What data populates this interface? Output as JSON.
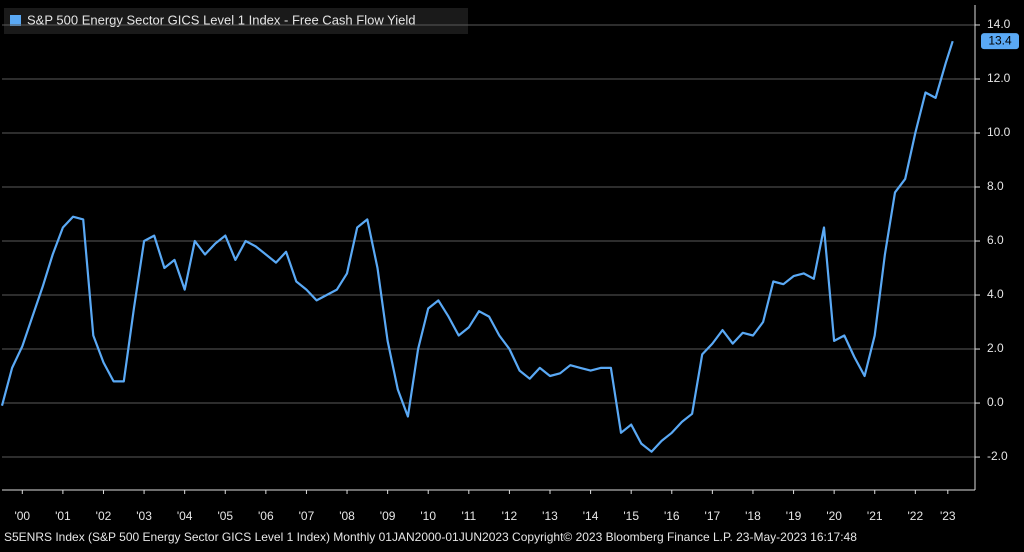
{
  "chart_data": {
    "type": "line",
    "legend_label": "S&P 500 Energy Sector GICS Level 1 Index - Free Cash Flow Yield",
    "footer": "S5ENRS Index (S&P 500 Energy Sector GICS Level 1 Index)  Monthly 01JAN2000-01JUN2023 Copyright© 2023 Bloomberg Finance L.P.  23-May-2023 16:17:48",
    "last_value": 13.4,
    "grid": true,
    "x": [
      2000,
      2000.25,
      2000.5,
      2000.75,
      2001,
      2001.25,
      2001.5,
      2001.75,
      2002,
      2002.25,
      2002.5,
      2002.75,
      2003,
      2003.25,
      2003.5,
      2003.75,
      2004,
      2004.25,
      2004.5,
      2004.75,
      2005,
      2005.25,
      2005.5,
      2005.75,
      2006,
      2006.25,
      2006.5,
      2006.75,
      2007,
      2007.25,
      2007.5,
      2007.75,
      2008,
      2008.25,
      2008.5,
      2008.75,
      2009,
      2009.25,
      2009.5,
      2009.75,
      2010,
      2010.25,
      2010.5,
      2010.75,
      2011,
      2011.25,
      2011.5,
      2011.75,
      2012,
      2012.25,
      2012.5,
      2012.75,
      2013,
      2013.25,
      2013.5,
      2013.75,
      2014,
      2014.25,
      2014.5,
      2014.75,
      2015,
      2015.25,
      2015.5,
      2015.75,
      2016,
      2016.25,
      2016.5,
      2016.75,
      2017,
      2017.25,
      2017.5,
      2017.75,
      2018,
      2018.25,
      2018.5,
      2018.75,
      2019,
      2019.25,
      2019.5,
      2019.75,
      2020,
      2020.25,
      2020.5,
      2020.75,
      2021,
      2021.25,
      2021.5,
      2021.75,
      2022,
      2022.25,
      2022.5,
      2022.75,
      2023,
      2023.25,
      2023.42
    ],
    "series": [
      {
        "name": "S&P 500 Energy Sector GICS Level 1 Index - Free Cash Flow Yield",
        "color": "#5aa9f5",
        "values": [
          -0.1,
          1.3,
          2.1,
          3.2,
          4.3,
          5.5,
          6.5,
          6.9,
          6.8,
          2.5,
          1.5,
          0.8,
          0.8,
          3.5,
          6.0,
          6.2,
          5.0,
          5.3,
          4.2,
          6.0,
          5.5,
          5.9,
          6.2,
          5.3,
          6.0,
          5.8,
          5.5,
          5.2,
          5.6,
          4.5,
          4.2,
          3.8,
          4.0,
          4.2,
          4.8,
          6.5,
          6.8,
          5.0,
          2.3,
          0.5,
          -0.5,
          2.0,
          3.5,
          3.8,
          3.2,
          2.5,
          2.8,
          3.4,
          3.2,
          2.5,
          2.0,
          1.2,
          0.9,
          1.3,
          1.0,
          1.1,
          1.4,
          1.3,
          1.2,
          1.3,
          1.3,
          -1.1,
          -0.8,
          -1.5,
          -1.8,
          -1.4,
          -1.1,
          -0.7,
          -0.4,
          1.8,
          2.2,
          2.7,
          2.2,
          2.6,
          2.5,
          3.0,
          4.5,
          4.4,
          4.7,
          4.8,
          4.6,
          6.5,
          2.3,
          2.5,
          1.7,
          1.0,
          2.5,
          5.5,
          7.8,
          8.3,
          10.0,
          11.5,
          11.3,
          12.6,
          13.4
        ]
      }
    ],
    "xlim": [
      2000,
      2023.97
    ],
    "xticks": [
      {
        "value": 2000.5,
        "label": "'00"
      },
      {
        "value": 2001.5,
        "label": "'01"
      },
      {
        "value": 2002.5,
        "label": "'02"
      },
      {
        "value": 2003.5,
        "label": "'03"
      },
      {
        "value": 2004.5,
        "label": "'04"
      },
      {
        "value": 2005.5,
        "label": "'05"
      },
      {
        "value": 2006.5,
        "label": "'06"
      },
      {
        "value": 2007.5,
        "label": "'07"
      },
      {
        "value": 2008.5,
        "label": "'08"
      },
      {
        "value": 2009.5,
        "label": "'09"
      },
      {
        "value": 2010.5,
        "label": "'10"
      },
      {
        "value": 2011.5,
        "label": "'11"
      },
      {
        "value": 2012.5,
        "label": "'12"
      },
      {
        "value": 2013.5,
        "label": "'13"
      },
      {
        "value": 2014.5,
        "label": "'14"
      },
      {
        "value": 2015.5,
        "label": "'15"
      },
      {
        "value": 2016.5,
        "label": "'16"
      },
      {
        "value": 2017.5,
        "label": "'17"
      },
      {
        "value": 2018.5,
        "label": "'18"
      },
      {
        "value": 2019.5,
        "label": "'19"
      },
      {
        "value": 2020.5,
        "label": "'20"
      },
      {
        "value": 2021.5,
        "label": "'21"
      },
      {
        "value": 2022.5,
        "label": "'22"
      },
      {
        "value": 2023.3,
        "label": "'23"
      }
    ],
    "ylim": [
      -3.22,
      14.74
    ],
    "yticks": [
      {
        "value": -2,
        "label": "-2.0"
      },
      {
        "value": 0,
        "label": "0.0"
      },
      {
        "value": 2,
        "label": "2.0"
      },
      {
        "value": 4,
        "label": "4.0"
      },
      {
        "value": 6,
        "label": "6.0"
      },
      {
        "value": 8,
        "label": "8.0"
      },
      {
        "value": 10,
        "label": "10.0"
      },
      {
        "value": 12,
        "label": "12.0"
      },
      {
        "value": 14,
        "label": "14.0"
      }
    ]
  }
}
